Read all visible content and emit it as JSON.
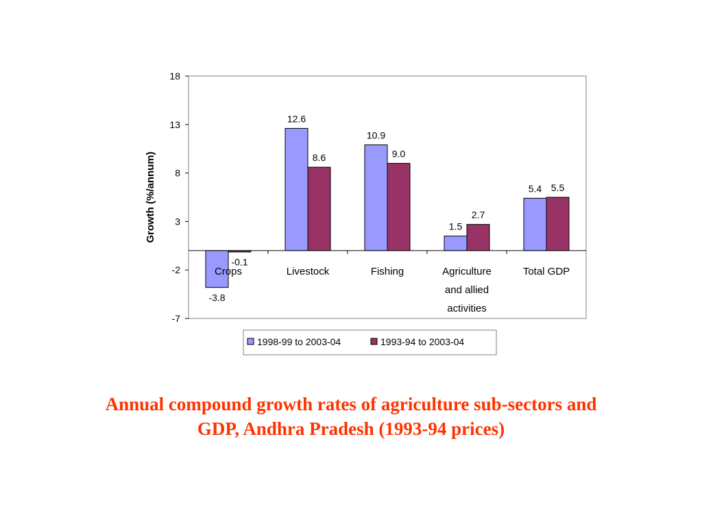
{
  "chart_data": {
    "type": "bar",
    "title": "",
    "xlabel": "",
    "ylabel": "Growth (%/annum)",
    "ylim": [
      -7,
      18
    ],
    "yticks": [
      18,
      13,
      8,
      3,
      -2,
      -7
    ],
    "grid": false,
    "legend_position": "bottom",
    "categories": [
      [
        "Crops"
      ],
      [
        "Livestock"
      ],
      [
        "Fishing"
      ],
      [
        "Agriculture",
        "and allied",
        "activities"
      ],
      [
        "Total GDP"
      ]
    ],
    "series": [
      {
        "name": "1998-99 to 2003-04",
        "color": "#9999ff",
        "values": [
          -3.8,
          12.6,
          10.9,
          1.5,
          5.4
        ],
        "labels": [
          "-3.8",
          "12.6",
          "10.9",
          "1.5",
          "5.4"
        ]
      },
      {
        "name": "1993-94 to 2003-04",
        "color": "#993366",
        "values": [
          -0.1,
          8.6,
          9.0,
          2.7,
          5.5
        ],
        "labels": [
          "-0.1",
          "8.6",
          "9.0",
          "2.7",
          "5.5"
        ]
      }
    ]
  },
  "caption": {
    "line1": "Annual compound growth rates of agriculture sub-sectors and",
    "line2": "GDP, Andhra Pradesh (1993-94 prices)"
  }
}
